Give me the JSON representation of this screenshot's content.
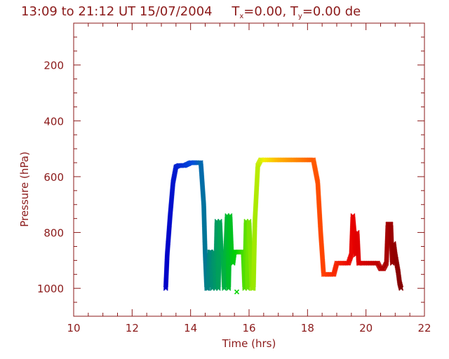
{
  "title": {
    "main": "13:09 to 21:12 UT 15/07/2004",
    "tx_prefix": "T",
    "tx_sub": "x",
    "tx_suffix": "=0.00, ",
    "ty_prefix": "T",
    "ty_sub": "y",
    "ty_suffix": "=0.00 de"
  },
  "colors": {
    "axis": "#8b1a1a",
    "background": "#ffffff"
  },
  "chart_data": {
    "type": "scatter",
    "title": "13:09 to 21:12 UT 15/07/2004   Tx=0.00, Ty=0.00 de",
    "xlabel": "Time  (hrs)",
    "ylabel": "Pressure  (hPa)",
    "xlim": [
      10,
      22
    ],
    "ylim": [
      1100,
      50
    ],
    "y_inverted": true,
    "xticks": [
      "10",
      "12",
      "14",
      "16",
      "18",
      "20",
      "22"
    ],
    "yticks": [
      "200",
      "400",
      "600",
      "800",
      "1000"
    ],
    "x_minor_step": 0.5,
    "y_minor_step": 50,
    "grid": false,
    "legend": "none",
    "marker": "x",
    "color_encoding": "rainbow by time (blue to dark red)",
    "series": [
      {
        "x": [
          13.15,
          13.2,
          13.3,
          13.4,
          13.5,
          13.6,
          13.7,
          13.8,
          13.9,
          14.0,
          14.1,
          14.2,
          14.35,
          14.45,
          14.5,
          14.55,
          14.6,
          14.65,
          14.7,
          14.75,
          14.8,
          14.85,
          14.9,
          14.95,
          15.0,
          15.05,
          15.1,
          15.15,
          15.2,
          15.25,
          15.3,
          15.35,
          15.4,
          15.45,
          15.5,
          15.55,
          15.6,
          15.7,
          15.8,
          15.85,
          15.9,
          15.95,
          16.0,
          16.05,
          16.1,
          16.15,
          16.2,
          16.3,
          16.4,
          16.5,
          16.7,
          17.0,
          17.3,
          17.6,
          17.9,
          18.2,
          18.35,
          18.45,
          18.55,
          18.7,
          18.9,
          19.0,
          19.2,
          19.4,
          19.5,
          19.55,
          19.6,
          19.65,
          19.7,
          19.75,
          19.8,
          20.0,
          20.2,
          20.4,
          20.5,
          20.6,
          20.7,
          20.75,
          20.8,
          20.85,
          20.9,
          20.95,
          21.0,
          21.05,
          21.1,
          21.15,
          21.2
        ],
        "y": [
          1000,
          880,
          740,
          620,
          565,
          560,
          560,
          560,
          555,
          550,
          550,
          550,
          550,
          700,
          880,
          1000,
          1000,
          870,
          870,
          1000,
          870,
          1000,
          760,
          1000,
          760,
          870,
          870,
          1000,
          870,
          740,
          1000,
          740,
          870,
          910,
          870,
          870,
          870,
          870,
          870,
          1000,
          760,
          1000,
          760,
          880,
          1000,
          1000,
          760,
          560,
          540,
          540,
          540,
          540,
          540,
          540,
          540,
          540,
          620,
          800,
          950,
          950,
          950,
          910,
          910,
          910,
          880,
          740,
          800,
          880,
          800,
          910,
          910,
          910,
          910,
          910,
          930,
          930,
          910,
          770,
          770,
          770,
          910,
          840,
          880,
          910,
          940,
          980,
          1000
        ]
      },
      {
        "name": "outlier",
        "x": [
          15.58
        ],
        "y": [
          1013
        ]
      }
    ]
  }
}
